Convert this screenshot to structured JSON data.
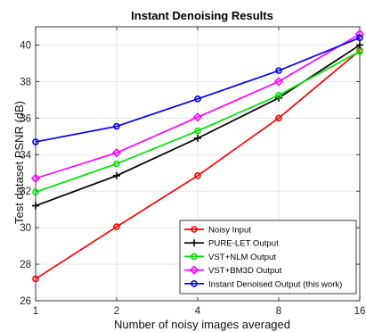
{
  "chart_data": {
    "type": "line",
    "title": "Instant Denoising Results",
    "xlabel": "Number of noisy images averaged",
    "ylabel": "Test dataset PSNR (dB)",
    "x_scale": "log2",
    "categories": [
      "1",
      "2",
      "4",
      "8",
      "16"
    ],
    "x": [
      1,
      2,
      4,
      8,
      16
    ],
    "ylim": [
      26,
      41
    ],
    "yticks": [
      26,
      28,
      30,
      32,
      34,
      36,
      38,
      40
    ],
    "grid": true,
    "legend_position": "bottom-right",
    "series": [
      {
        "name": "Noisy Input",
        "color": "#ff0000",
        "marker": "circle",
        "values": [
          27.2,
          30.05,
          32.85,
          36.0,
          39.7
        ]
      },
      {
        "name": "PURE-LET Output",
        "color": "#000000",
        "marker": "plus",
        "values": [
          31.2,
          32.85,
          34.9,
          37.1,
          40.0
        ]
      },
      {
        "name": "VST+NLM Output",
        "color": "#00e000",
        "marker": "circle",
        "values": [
          31.95,
          33.5,
          35.3,
          37.25,
          39.65
        ]
      },
      {
        "name": "VST+BM3D Output",
        "color": "#ff00ff",
        "marker": "diamond",
        "values": [
          32.7,
          34.1,
          36.05,
          38.0,
          40.6
        ]
      },
      {
        "name": "Instant Denoised Output (this work)",
        "color": "#0000ee",
        "marker": "circle",
        "values": [
          34.7,
          35.55,
          37.05,
          38.6,
          40.4
        ]
      }
    ]
  }
}
